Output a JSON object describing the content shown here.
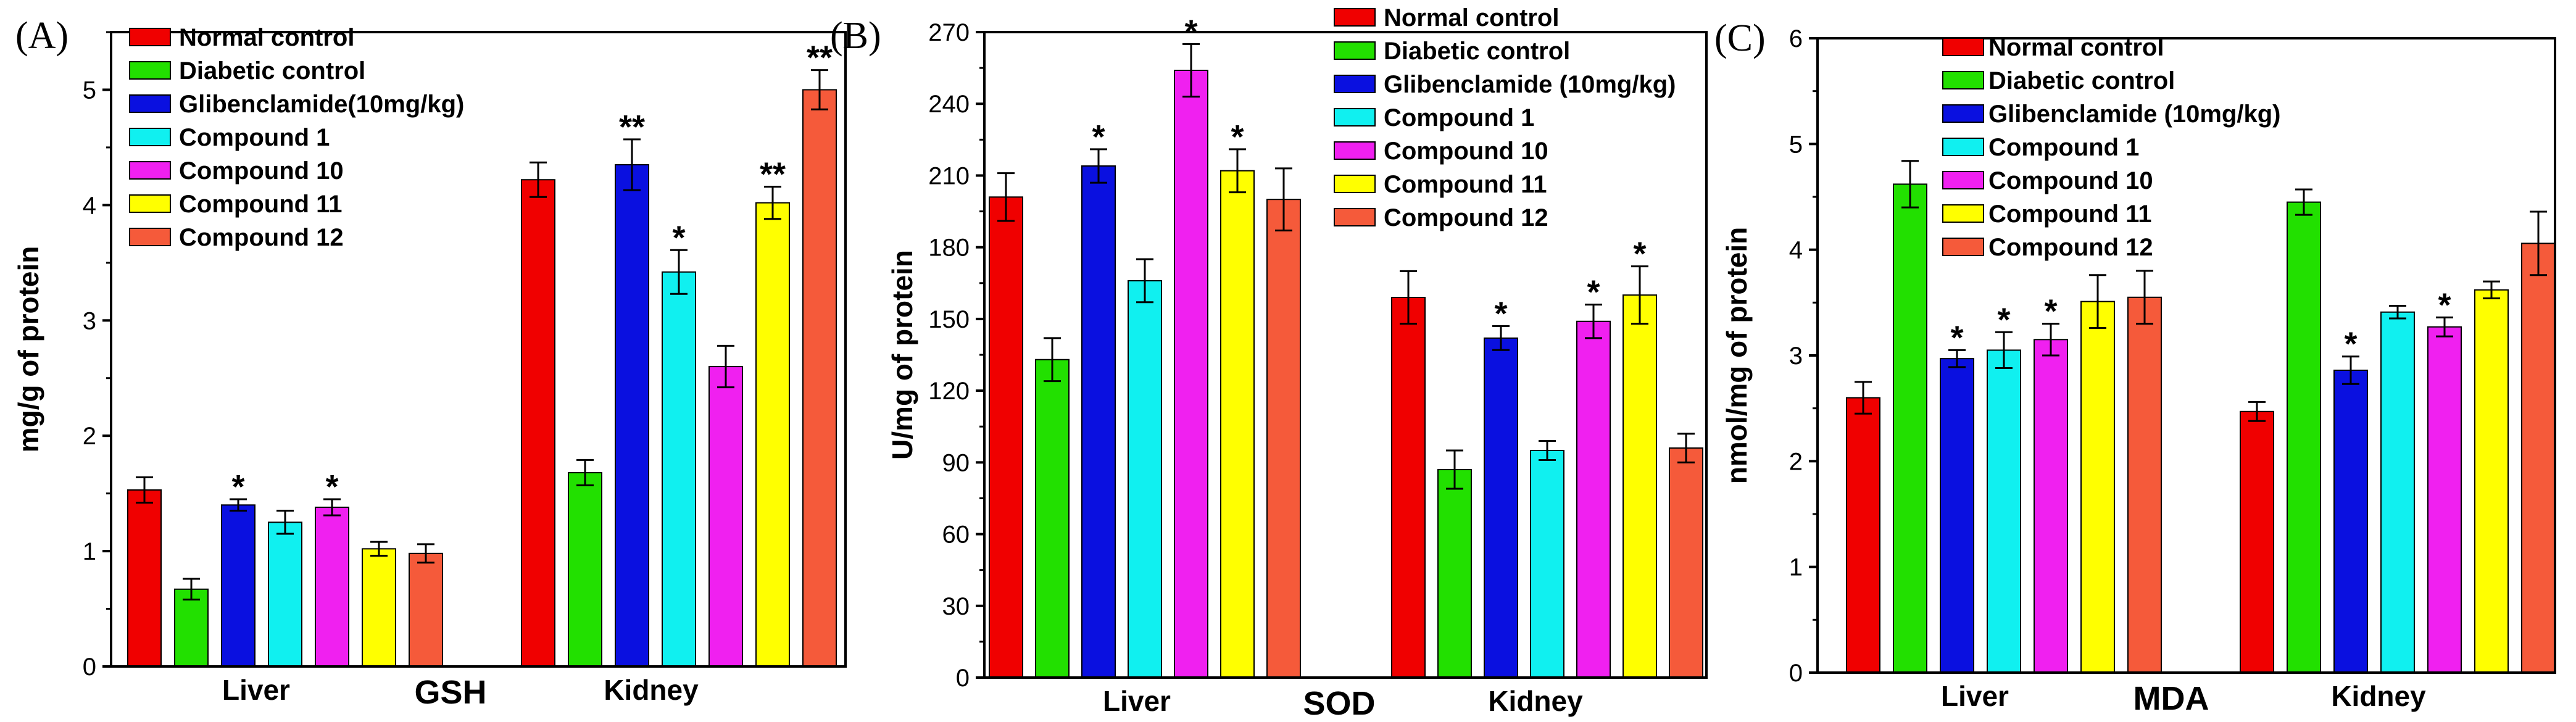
{
  "figure": {
    "legend_series": [
      "Normal control",
      "Diabetic control",
      "Glibenclamide(10mg/kg)",
      "Compound 1",
      "Compound 10",
      "Compound 11",
      "Compound 12"
    ],
    "colors": [
      "#f00000",
      "#22e000",
      "#0a10e0",
      "#10f0f0",
      "#f020f0",
      "#ffff00",
      "#f55a3a"
    ]
  },
  "chart_data": [
    {
      "type": "bar",
      "panel_label": "(A)",
      "assay": "GSH",
      "title": "",
      "xlabel": "",
      "ylabel": "mg/g of protein",
      "ylim": [
        0,
        5.5
      ],
      "yticks": [
        "0",
        "1",
        "2",
        "3",
        "4",
        "5"
      ],
      "categories": [
        "Liver",
        "Kidney"
      ],
      "legend": [
        "Normal control",
        "Diabetic control",
        "Glibenclamide(10mg/kg)",
        "Compound 1",
        "Compound 10",
        "Compound 11",
        "Compound 12"
      ],
      "series": [
        {
          "name": "Normal control",
          "values": [
            1.53,
            4.22
          ],
          "errors": [
            0.11,
            0.15
          ],
          "sig": [
            "",
            ""
          ]
        },
        {
          "name": "Diabetic control",
          "values": [
            0.67,
            1.68
          ],
          "errors": [
            0.09,
            0.11
          ],
          "sig": [
            "",
            ""
          ]
        },
        {
          "name": "Glibenclamide(10mg/kg)",
          "values": [
            1.4,
            4.35
          ],
          "errors": [
            0.05,
            0.22
          ],
          "sig": [
            "*",
            "**"
          ]
        },
        {
          "name": "Compound 1",
          "values": [
            1.25,
            3.42
          ],
          "errors": [
            0.1,
            0.19
          ],
          "sig": [
            "",
            "*"
          ]
        },
        {
          "name": "Compound 10",
          "values": [
            1.38,
            2.6
          ],
          "errors": [
            0.07,
            0.18
          ],
          "sig": [
            "*",
            ""
          ]
        },
        {
          "name": "Compound 11",
          "values": [
            1.02,
            4.02
          ],
          "errors": [
            0.06,
            0.14
          ],
          "sig": [
            "",
            "**"
          ]
        },
        {
          "name": "Compound 12",
          "values": [
            0.98,
            5.0
          ],
          "errors": [
            0.08,
            0.17
          ],
          "sig": [
            "",
            "**"
          ]
        }
      ]
    },
    {
      "type": "bar",
      "panel_label": "(B)",
      "assay": "SOD",
      "title": "",
      "xlabel": "",
      "ylabel": "U/mg of protein",
      "ylim": [
        0,
        270
      ],
      "yticks": [
        "0",
        "30",
        "60",
        "90",
        "120",
        "150",
        "180",
        "210",
        "240",
        "270"
      ],
      "categories": [
        "Liver",
        "Kidney"
      ],
      "legend": [
        "Normal control",
        "Diabetic control",
        "Glibenclamide (10mg/kg)",
        "Compound 1",
        "Compound 10",
        "Compound 11",
        "Compound 12"
      ],
      "series": [
        {
          "name": "Normal control",
          "values": [
            201,
            159
          ],
          "errors": [
            10,
            11
          ],
          "sig": [
            "",
            ""
          ]
        },
        {
          "name": "Diabetic control",
          "values": [
            133,
            87
          ],
          "errors": [
            9,
            8
          ],
          "sig": [
            "",
            ""
          ]
        },
        {
          "name": "Glibenclamide (10mg/kg)",
          "values": [
            214,
            142
          ],
          "errors": [
            7,
            5
          ],
          "sig": [
            "*",
            "*"
          ]
        },
        {
          "name": "Compound 1",
          "values": [
            166,
            95
          ],
          "errors": [
            9,
            4
          ],
          "sig": [
            "",
            ""
          ]
        },
        {
          "name": "Compound 10",
          "values": [
            254,
            149
          ],
          "errors": [
            11,
            7
          ],
          "sig": [
            "*",
            "*"
          ]
        },
        {
          "name": "Compound 11",
          "values": [
            212,
            160
          ],
          "errors": [
            9,
            12
          ],
          "sig": [
            "*",
            "*"
          ]
        },
        {
          "name": "Compound 12",
          "values": [
            200,
            96
          ],
          "errors": [
            13,
            6
          ],
          "sig": [
            "",
            ""
          ]
        }
      ]
    },
    {
      "type": "bar",
      "panel_label": "(C)",
      "assay": "MDA",
      "title": "",
      "xlabel": "",
      "ylabel": "nmol/mg of protein",
      "ylim": [
        0,
        6
      ],
      "yticks": [
        "0",
        "1",
        "2",
        "3",
        "4",
        "5",
        "6"
      ],
      "categories": [
        "Liver",
        "Kidney"
      ],
      "legend": [
        "Normal control",
        "Diabetic control",
        "Glibenclamide (10mg/kg)",
        "Compound 1",
        "Compound 10",
        "Compound 11",
        "Compound 12"
      ],
      "series": [
        {
          "name": "Normal control",
          "values": [
            2.6,
            2.47
          ],
          "errors": [
            0.15,
            0.09
          ],
          "sig": [
            "",
            ""
          ]
        },
        {
          "name": "Diabetic control",
          "values": [
            4.62,
            4.45
          ],
          "errors": [
            0.22,
            0.12
          ],
          "sig": [
            "",
            ""
          ]
        },
        {
          "name": "Glibenclamide (10mg/kg)",
          "values": [
            2.97,
            2.86
          ],
          "errors": [
            0.08,
            0.13
          ],
          "sig": [
            "*",
            "*"
          ]
        },
        {
          "name": "Compound 1",
          "values": [
            3.05,
            3.41
          ],
          "errors": [
            0.17,
            0.06
          ],
          "sig": [
            "*",
            ""
          ]
        },
        {
          "name": "Compound 10",
          "values": [
            3.15,
            3.27
          ],
          "errors": [
            0.15,
            0.09
          ],
          "sig": [
            "*",
            "*"
          ]
        },
        {
          "name": "Compound 11",
          "values": [
            3.51,
            3.62
          ],
          "errors": [
            0.25,
            0.08
          ],
          "sig": [
            "",
            ""
          ]
        },
        {
          "name": "Compound 12",
          "values": [
            3.55,
            4.06
          ],
          "errors": [
            0.25,
            0.3
          ],
          "sig": [
            "",
            ""
          ]
        }
      ]
    }
  ]
}
